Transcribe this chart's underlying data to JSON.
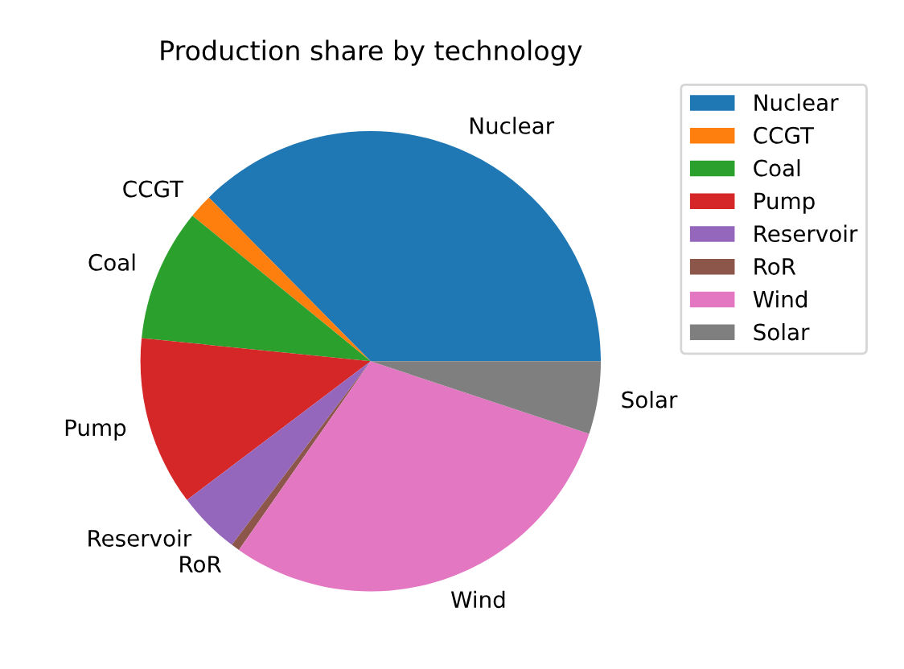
{
  "chart_data": {
    "type": "pie",
    "title": "Production share by technology",
    "categories": [
      "Nuclear",
      "CCGT",
      "Coal",
      "Pump",
      "Reservoir",
      "RoR",
      "Wind",
      "Solar"
    ],
    "values": [
      37.4,
      1.7,
      9.3,
      11.9,
      4.4,
      0.6,
      29.6,
      5.1
    ],
    "colors": [
      "#1f77b4",
      "#ff7f0e",
      "#2ca02c",
      "#d62728",
      "#9467bd",
      "#8c564b",
      "#e377c2",
      "#7f7f7f"
    ],
    "legend": "top right"
  }
}
